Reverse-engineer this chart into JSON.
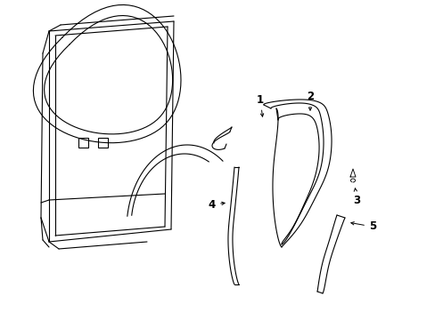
{
  "background_color": "#ffffff",
  "line_color": "#000000",
  "lw": 0.8
}
